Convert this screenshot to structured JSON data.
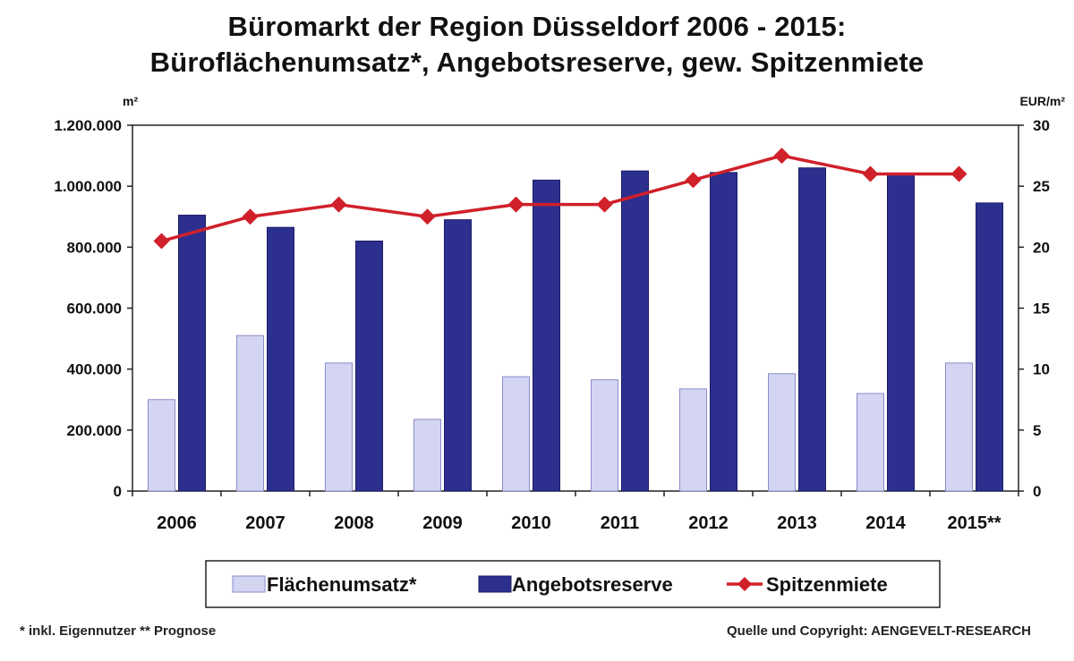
{
  "chart_data": {
    "type": "bar",
    "title": "Büromarkt der Region Düsseldorf 2006 - 2015:",
    "subtitle": "Büroflächenumsatz*, Angebotsreserve, gew. Spitzenmiete",
    "y_left_unit": "m²",
    "y_right_unit": "EUR/m²",
    "y_left_lim": [
      0,
      1200000
    ],
    "y_right_lim": [
      0,
      30
    ],
    "y_left_ticks": [
      "0",
      "200.000",
      "400.000",
      "600.000",
      "800.000",
      "1.000.000",
      "1.200.000"
    ],
    "y_right_ticks": [
      "0",
      "5",
      "10",
      "15",
      "20",
      "25",
      "30"
    ],
    "categories": [
      "2006",
      "2007",
      "2008",
      "2009",
      "2010",
      "2011",
      "2012",
      "2013",
      "2014",
      "2015**"
    ],
    "series": [
      {
        "name": "Flächenumsatz*",
        "kind": "bar",
        "axis": "left",
        "color": "#d4d5f3",
        "values": [
          300000,
          510000,
          420000,
          235000,
          375000,
          365000,
          335000,
          385000,
          320000,
          420000
        ]
      },
      {
        "name": "Angebotsreserve",
        "kind": "bar",
        "axis": "left",
        "color": "#2d2f8f",
        "values": [
          905000,
          865000,
          820000,
          890000,
          1020000,
          1050000,
          1045000,
          1060000,
          1040000,
          945000
        ]
      },
      {
        "name": "Spitzenmiete",
        "kind": "line",
        "axis": "right",
        "color": "#d0202a",
        "values": [
          20.5,
          22.5,
          23.5,
          22.5,
          23.5,
          23.5,
          25.5,
          27.5,
          26.0,
          26.0
        ]
      }
    ],
    "grid": false,
    "legend_position": "bottom"
  },
  "footnote_left": "* inkl. Eigennutzer ** Prognose",
  "footnote_right": "Quelle und Copyright: AENGEVELT-RESEARCH"
}
